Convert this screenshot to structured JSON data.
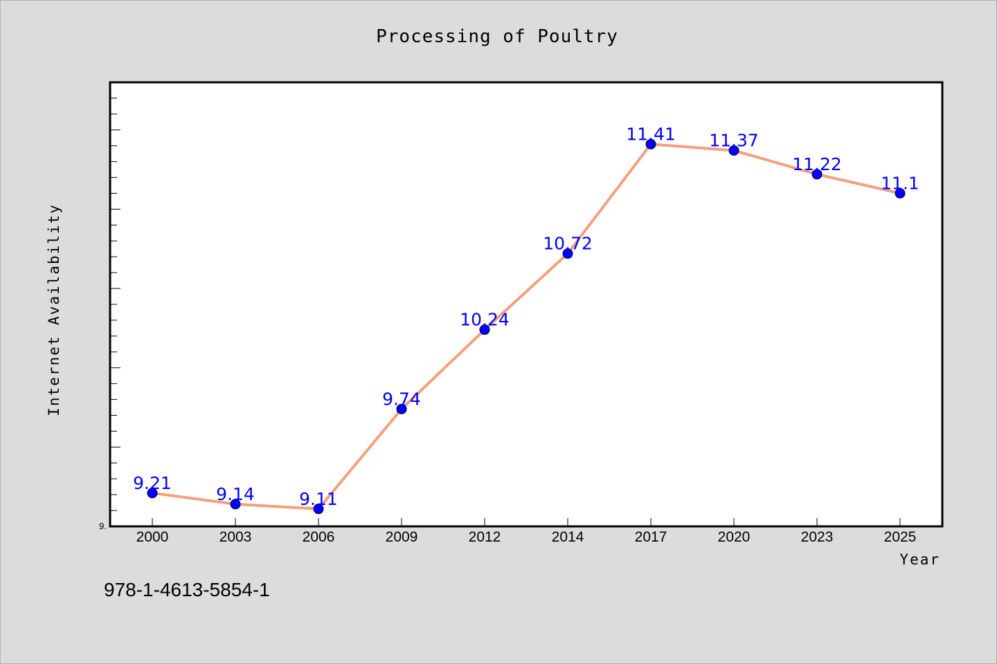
{
  "chart_data": {
    "type": "line",
    "title": "Processing of Poultry",
    "xlabel": "Year",
    "ylabel": "Internet Availability",
    "categories": [
      "2000",
      "2003",
      "2006",
      "2009",
      "2012",
      "2014",
      "2017",
      "2020",
      "2023",
      "2025"
    ],
    "series": [
      {
        "values": [
          9.21,
          9.14,
          9.11,
          9.74,
          10.24,
          10.72,
          11.41,
          11.37,
          11.22,
          11.1
        ],
        "labels": [
          "9.21",
          "9.14",
          "9.11",
          "9.74",
          "10.24",
          "10.72",
          "11.41",
          "11.37",
          "11.22",
          "11.1"
        ]
      }
    ],
    "ymin_label": "9.",
    "ylim": [
      9.0,
      11.8
    ],
    "grid": false,
    "legend": "none",
    "colors": {
      "line": "#f4a07a",
      "marker": "#0000ff",
      "label": "#0000ff",
      "plot_background": "#ffffff",
      "page_background": "#dcdcdc"
    }
  },
  "footer": {
    "isbn": "978-1-4613-5854-1"
  }
}
